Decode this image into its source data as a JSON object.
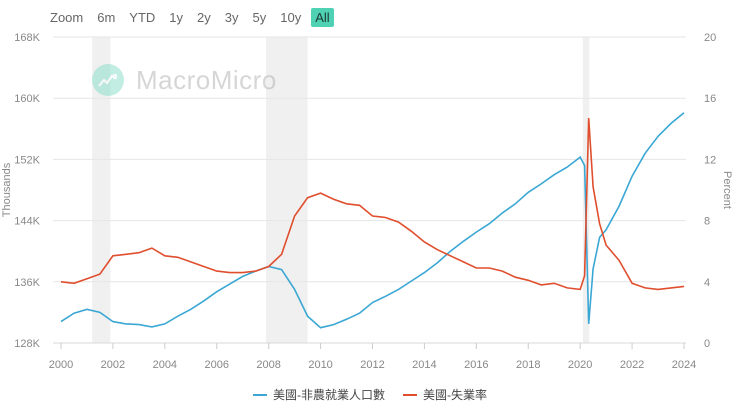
{
  "range_selector": {
    "label": "Zoom",
    "buttons": [
      "6m",
      "YTD",
      "1y",
      "2y",
      "3y",
      "5y",
      "10y",
      "All"
    ],
    "active": "All"
  },
  "watermark": {
    "text": "MacroMicro",
    "icon": "chart-trend-icon"
  },
  "colors": {
    "nfp": "#3aa7d4",
    "unemployment": "#e04e2e",
    "recession": "#f0f0f0",
    "grid": "#e6e6e6",
    "active_button": "#4fd1b4"
  },
  "legend": [
    {
      "label": "美國-非農就業人口數",
      "color": "#3aa7d4"
    },
    {
      "label": "美國-失業率",
      "color": "#e04e2e"
    }
  ],
  "chart_data": {
    "type": "line",
    "title": "",
    "xlabel": "",
    "ylabel_left": "Thousands",
    "ylabel_right": "Percent",
    "x_ticks": [
      "2000",
      "2002",
      "2004",
      "2006",
      "2008",
      "2010",
      "2012",
      "2014",
      "2016",
      "2018",
      "2020",
      "2022",
      "2024"
    ],
    "y_left_ticks": [
      "128K",
      "136K",
      "144K",
      "152K",
      "160K",
      "168K"
    ],
    "y_right_ticks": [
      "0",
      "4",
      "8",
      "12",
      "16",
      "20"
    ],
    "ylim_left": [
      128000,
      168000
    ],
    "ylim_right": [
      0,
      20
    ],
    "grid": true,
    "legend_position": "bottom",
    "recession_bands": [
      [
        2001.2,
        2001.9
      ],
      [
        2007.9,
        2009.5
      ],
      [
        2020.1,
        2020.35
      ]
    ],
    "x": [
      2000.0,
      2000.5,
      2001.0,
      2001.5,
      2002.0,
      2002.5,
      2003.0,
      2003.5,
      2004.0,
      2004.5,
      2005.0,
      2005.5,
      2006.0,
      2006.5,
      2007.0,
      2007.5,
      2008.0,
      2008.5,
      2009.0,
      2009.5,
      2010.0,
      2010.5,
      2011.0,
      2011.5,
      2012.0,
      2012.5,
      2013.0,
      2013.5,
      2014.0,
      2014.5,
      2015.0,
      2015.5,
      2016.0,
      2016.5,
      2017.0,
      2017.5,
      2018.0,
      2018.5,
      2019.0,
      2019.5,
      2020.0,
      2020.17,
      2020.33,
      2020.5,
      2020.75,
      2021.0,
      2021.5,
      2022.0,
      2022.5,
      2023.0,
      2023.5,
      2024.0
    ],
    "series": [
      {
        "name": "美國-非農就業人口數",
        "axis": "left",
        "unit": "Thousands",
        "values": [
          130800,
          131900,
          132400,
          132000,
          130800,
          130500,
          130400,
          130100,
          130500,
          131500,
          132400,
          133500,
          134700,
          135700,
          136700,
          137400,
          138000,
          137600,
          135000,
          131500,
          130000,
          130400,
          131100,
          131900,
          133300,
          134100,
          135000,
          136100,
          137200,
          138500,
          140000,
          141300,
          142500,
          143600,
          145000,
          146200,
          147700,
          148800,
          150000,
          151000,
          152300,
          151200,
          130500,
          137700,
          141800,
          142800,
          145900,
          149800,
          152800,
          155000,
          156700,
          158100
        ]
      },
      {
        "name": "美國-失業率",
        "axis": "right",
        "unit": "Percent",
        "values": [
          4.0,
          3.9,
          4.2,
          4.5,
          5.7,
          5.8,
          5.9,
          6.2,
          5.7,
          5.6,
          5.3,
          5.0,
          4.7,
          4.6,
          4.6,
          4.7,
          5.0,
          5.8,
          8.3,
          9.5,
          9.8,
          9.4,
          9.1,
          9.0,
          8.3,
          8.2,
          7.9,
          7.3,
          6.6,
          6.1,
          5.7,
          5.3,
          4.9,
          4.9,
          4.7,
          4.3,
          4.1,
          3.8,
          3.9,
          3.6,
          3.5,
          4.4,
          14.7,
          10.2,
          7.8,
          6.4,
          5.4,
          3.9,
          3.6,
          3.5,
          3.6,
          3.7
        ]
      }
    ]
  }
}
